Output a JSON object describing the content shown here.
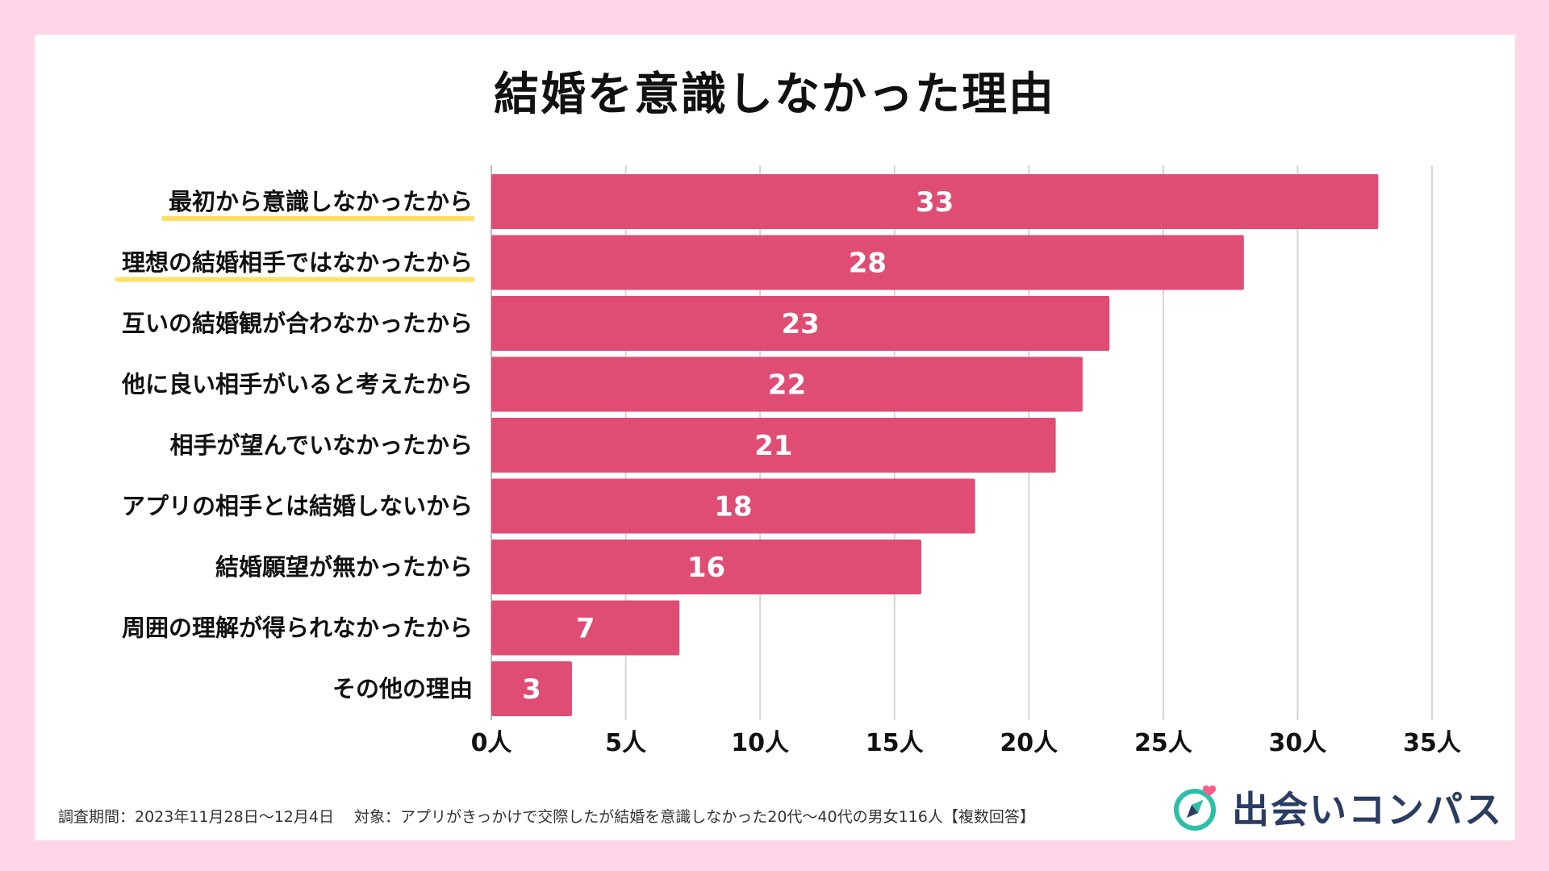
{
  "chart_data": {
    "type": "bar",
    "orientation": "horizontal",
    "title": "結婚を意識しなかった理由",
    "categories": [
      "最初から意識しなかったから",
      "理想の結婚相手ではなかったから",
      "互いの結婚観が合わなかったから",
      "他に良い相手がいると考えたから",
      "相手が望んでいなかったから",
      "アプリの相手とは結婚しないから",
      "結婚願望が無かったから",
      "周囲の理解が得られなかったから",
      "その他の理由"
    ],
    "values": [
      33,
      28,
      23,
      22,
      21,
      18,
      16,
      7,
      3
    ],
    "highlighted_categories": [
      0,
      1
    ],
    "xticks": [
      "0人",
      "5人",
      "10人",
      "15人",
      "20人",
      "25人",
      "30人",
      "35人"
    ],
    "xlim": [
      0,
      35
    ],
    "grid": true,
    "bar_color": "#e04d74",
    "highlight_color": "#ffe066",
    "label_color": "#ffffff"
  },
  "footnote": "調査期間：2023年11月28日〜12月4日　 対象：アプリがきっかけで交際したが結婚を意識しなかった20代〜40代の男女116人【複数回答】",
  "logo": {
    "text": "出会いコンパス",
    "icon": "compass-heart-icon"
  }
}
